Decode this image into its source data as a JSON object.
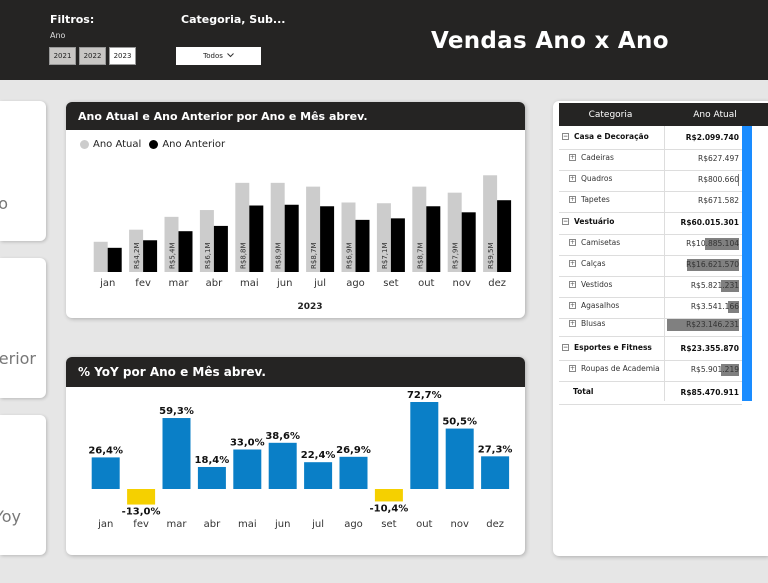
{
  "header": {
    "filters_label": "Filtros:",
    "year_filter_label": "Ano",
    "years": [
      {
        "label": "2021",
        "selected": false
      },
      {
        "label": "2022",
        "selected": false
      },
      {
        "label": "2023",
        "selected": true
      }
    ],
    "category_filter_label": "Categoria, Sub...",
    "category_value": "Todos",
    "title": "Vendas Ano x Ano"
  },
  "kpi_cards": [
    "o",
    "erior",
    "Yoy"
  ],
  "colors": {
    "dark": "#252423",
    "atual": "#cccccc",
    "anterior": "#000000",
    "positive": "#0a7fc7",
    "negative": "#f5d000",
    "table_bar": "#808080",
    "accent": "#1a8cff"
  },
  "bar_chart": {
    "title": "Ano Atual e Ano Anterior por Ano e Mês abrev.",
    "legend": [
      "Ano Atual",
      "Ano Anterior"
    ],
    "xgroup_label": "2023",
    "chart_data": {
      "type": "bar",
      "categories": [
        "jan",
        "fev",
        "mar",
        "abr",
        "mai",
        "jun",
        "jul",
        "ago",
        "set",
        "out",
        "nov",
        "dez"
      ],
      "series": [
        {
          "name": "Ano Atual",
          "values": [
            4.0,
            5.6,
            7.3,
            8.2,
            11.8,
            11.8,
            11.3,
            9.2,
            9.1,
            11.3,
            10.5,
            12.8
          ]
        },
        {
          "name": "Ano Anterior",
          "values": [
            3.2,
            4.2,
            5.4,
            6.1,
            8.8,
            8.9,
            8.7,
            6.9,
            7.1,
            8.7,
            7.9,
            9.5
          ]
        }
      ],
      "data_labels": [
        "",
        "R$4,2M",
        "R$5,4M",
        "R$6,1M",
        "R$8,8M",
        "R$8,9M",
        "R$8,7M",
        "R$6,9M",
        "R$7,1M",
        "R$8,7M",
        "R$7,9M",
        "R$9,5M"
      ],
      "ylim": [
        0,
        13.5
      ]
    }
  },
  "yoy_chart": {
    "title": "%  YoY por Ano e Mês abrev.",
    "chart_data": {
      "type": "bar",
      "categories": [
        "jan",
        "fev",
        "mar",
        "abr",
        "mai",
        "jun",
        "jul",
        "ago",
        "set",
        "out",
        "nov",
        "dez"
      ],
      "values": [
        26.4,
        -13.0,
        59.3,
        18.4,
        33.0,
        38.6,
        22.4,
        26.9,
        -10.4,
        72.7,
        50.5,
        27.3
      ],
      "data_labels": [
        "26,4%",
        "-13,0%",
        "59,3%",
        "18,4%",
        "33,0%",
        "38,6%",
        "22,4%",
        "26,9%",
        "-10,4%",
        "72,7%",
        "50,5%",
        "27,3%"
      ],
      "ylim": [
        -16,
        75
      ]
    }
  },
  "table": {
    "headers": [
      "Categoria",
      "Ano Atual"
    ],
    "rows": [
      {
        "label": "Casa e Decoração",
        "value": "R$2.099.740",
        "level": 0,
        "expander": "−",
        "bar": 0
      },
      {
        "label": "Cadeiras",
        "value": "R$627.497",
        "level": 1,
        "expander": "+",
        "bar": 0
      },
      {
        "label": "Quadros",
        "value": "R$800.660",
        "level": 1,
        "expander": "+",
        "bar": 0.01
      },
      {
        "label": "Tapetes",
        "value": "R$671.582",
        "level": 1,
        "expander": "+",
        "bar": 0
      },
      {
        "label": "Vestuário",
        "value": "R$60.015.301",
        "level": 0,
        "expander": "−",
        "bar": 0
      },
      {
        "label": "Camisetas",
        "value": "R$10.885.104",
        "level": 1,
        "expander": "+",
        "bar": 0.47
      },
      {
        "label": "Calças",
        "value": "R$16.621.570",
        "level": 1,
        "expander": "+",
        "bar": 0.72
      },
      {
        "label": "Vestidos",
        "value": "R$5.821.231",
        "level": 1,
        "expander": "+",
        "bar": 0.25
      },
      {
        "label": "Agasalhos",
        "value": "R$3.541.166",
        "level": 1,
        "expander": "+",
        "bar": 0.15
      },
      {
        "label": "Blusas",
        "value": "R$23.146.231",
        "level": 1,
        "expander": "+",
        "bar": 1.0
      },
      {
        "label": "Esportes e Fitness",
        "value": "R$23.355.870",
        "level": 0,
        "expander": "−",
        "bar": 0
      },
      {
        "label": "Roupas de Academia",
        "value": "R$5.901.219",
        "level": 1,
        "expander": "+",
        "bar": 0.25
      },
      {
        "label": "Total",
        "value": "R$85.470.911",
        "level": -1,
        "expander": "",
        "bar": 0
      }
    ]
  }
}
